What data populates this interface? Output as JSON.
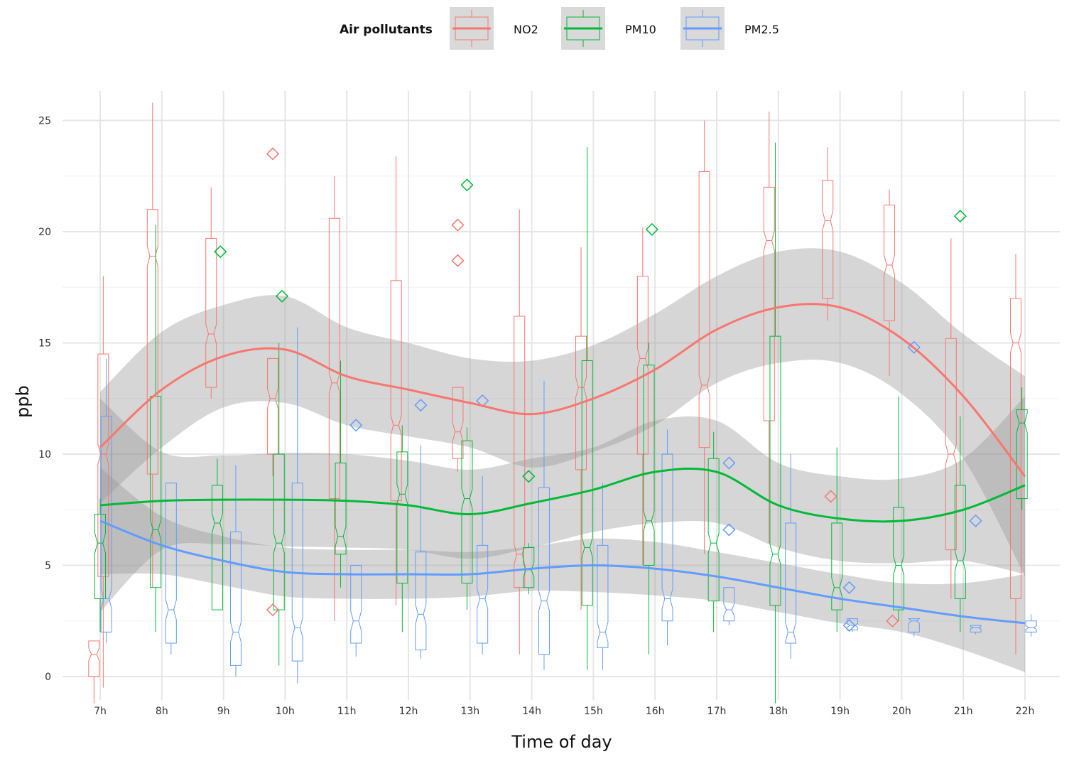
{
  "chart_data": {
    "type": "box_with_smooth",
    "xlabel": "Time of day",
    "ylabel": "ppb",
    "ylim": [
      -1.2,
      26.2
    ],
    "y_ticks": [
      0,
      5,
      10,
      15,
      20,
      25
    ],
    "grid": true,
    "legend": {
      "title": "Air pollutants",
      "position": "top",
      "entries": [
        "NO2",
        "PM10",
        "PM2.5"
      ]
    },
    "categories": [
      "7h",
      "8h",
      "9h",
      "10h",
      "11h",
      "12h",
      "13h",
      "14h",
      "15h",
      "16h",
      "17h",
      "18h",
      "19h",
      "20h",
      "21h",
      "22h"
    ],
    "series": [
      {
        "name": "NO2",
        "color": "#F8766D",
        "smooth": [
          10.3,
          12.9,
          14.4,
          14.7,
          13.5,
          12.9,
          12.3,
          11.8,
          12.5,
          13.8,
          15.6,
          16.6,
          16.6,
          15.2,
          12.6,
          9.0
        ],
        "smooth_se": [
          2.5,
          2.6,
          2.3,
          2.4,
          2.2,
          2.1,
          2.0,
          2.4,
          2.4,
          2.5,
          2.4,
          2.5,
          2.5,
          2.5,
          2.8,
          4.5
        ],
        "boxes": [
          {
            "whisker_low": -1.2,
            "q1": 0.0,
            "median": 1.0,
            "q3": 1.6,
            "whisker_high": 1.6
          },
          {
            "whisker_low": -0.5,
            "q1": 4.5,
            "median": 10.0,
            "q3": 14.5,
            "whisker_high": 18.0
          },
          {
            "whisker_low": 4.0,
            "q1": 9.1,
            "median": 18.9,
            "q3": 21.0,
            "whisker_high": 25.8
          },
          {
            "whisker_low": 12.5,
            "q1": 13.0,
            "median": 15.4,
            "q3": 19.7,
            "whisker_high": 22.0
          },
          {
            "whisker_low": 9.0,
            "q1": 10.0,
            "median": 12.5,
            "q3": 14.3,
            "whisker_high": 14.3
          },
          {
            "whisker_low": 2.5,
            "q1": 8.0,
            "median": 13.2,
            "q3": 20.6,
            "whisker_high": 22.5
          },
          {
            "whisker_low": 3.2,
            "q1": 7.9,
            "median": 11.3,
            "q3": 17.8,
            "whisker_high": 23.4
          },
          {
            "whisker_low": 9.2,
            "q1": 9.8,
            "median": 11.0,
            "q3": 13.0,
            "whisker_high": 13.0
          },
          {
            "whisker_low": 1.0,
            "q1": 4.0,
            "median": 5.5,
            "q3": 16.2,
            "whisker_high": 21.0
          },
          {
            "whisker_low": 3.0,
            "q1": 9.3,
            "median": 13.0,
            "q3": 15.3,
            "whisker_high": 19.3
          },
          {
            "whisker_low": 5.0,
            "q1": 10.0,
            "median": 14.3,
            "q3": 18.0,
            "whisker_high": 20.2
          },
          {
            "whisker_low": 5.5,
            "q1": 10.3,
            "median": 13.1,
            "q3": 22.7,
            "whisker_high": 25.0
          },
          {
            "whisker_low": 6.0,
            "q1": 11.5,
            "median": 19.6,
            "q3": 22.0,
            "whisker_high": 25.4
          },
          {
            "whisker_low": 16.0,
            "q1": 17.0,
            "median": 20.5,
            "q3": 22.3,
            "whisker_high": 23.8
          },
          {
            "whisker_low": 13.5,
            "q1": 16.0,
            "median": 18.5,
            "q3": 21.2,
            "whisker_high": 21.9
          },
          {
            "whisker_low": 3.5,
            "q1": 5.7,
            "median": 10.0,
            "q3": 15.2,
            "whisker_high": 19.7
          },
          {
            "whisker_low": 1.0,
            "q1": 3.5,
            "median": 15.0,
            "q3": 17.0,
            "whisker_high": 19.0
          }
        ],
        "box_x": [
          6.9,
          7.05,
          7.85,
          8.8,
          9.8,
          10.8,
          11.8,
          12.8,
          13.8,
          14.8,
          15.8,
          16.8,
          17.85,
          18.8,
          19.8,
          20.8,
          21.85
        ],
        "outliers": [
          [
            9.8,
            23.5
          ],
          [
            9.8,
            3.0
          ],
          [
            12.8,
            20.3
          ],
          [
            12.8,
            18.7
          ],
          [
            18.85,
            8.1
          ],
          [
            19.85,
            2.5
          ]
        ]
      },
      {
        "name": "PM10",
        "color": "#00BA38",
        "smooth": [
          7.7,
          7.9,
          7.95,
          7.95,
          7.9,
          7.7,
          7.3,
          7.8,
          8.4,
          9.2,
          9.2,
          7.7,
          7.1,
          7.0,
          7.5,
          8.6
        ],
        "smooth_se": [
          4.8,
          2.2,
          2.0,
          2.1,
          2.1,
          2.0,
          2.0,
          2.0,
          1.9,
          2.3,
          2.3,
          1.9,
          1.9,
          1.9,
          2.3,
          4.0
        ],
        "boxes": [
          {
            "whisker_low": 2.0,
            "q1": 3.5,
            "median": 6.0,
            "q3": 7.3,
            "whisker_high": 8.0
          },
          {
            "whisker_low": 2.0,
            "q1": 4.0,
            "median": 6.6,
            "q3": 12.6,
            "whisker_high": 20.3
          },
          {
            "whisker_low": 3.0,
            "q1": 3.0,
            "median": 6.9,
            "q3": 8.6,
            "whisker_high": 9.8
          },
          {
            "whisker_low": 0.5,
            "q1": 3.0,
            "median": 6.0,
            "q3": 10.0,
            "whisker_high": 15.0
          },
          {
            "whisker_low": 4.0,
            "q1": 5.5,
            "median": 6.3,
            "q3": 9.6,
            "whisker_high": 14.2
          },
          {
            "whisker_low": 2.0,
            "q1": 4.2,
            "median": 8.2,
            "q3": 10.1,
            "whisker_high": 11.3
          },
          {
            "whisker_low": 3.0,
            "q1": 4.2,
            "median": 8.0,
            "q3": 10.6,
            "whisker_high": 11.2
          },
          {
            "whisker_low": 3.7,
            "q1": 4.0,
            "median": 4.8,
            "q3": 5.8,
            "whisker_high": 6.0
          },
          {
            "whisker_low": 0.3,
            "q1": 3.2,
            "median": 5.8,
            "q3": 14.2,
            "whisker_high": 23.8
          },
          {
            "whisker_low": 1.0,
            "q1": 5.0,
            "median": 7.0,
            "q3": 14.0,
            "whisker_high": 15.0
          },
          {
            "whisker_low": 2.0,
            "q1": 3.4,
            "median": 6.0,
            "q3": 9.8,
            "whisker_high": 11.0
          },
          {
            "whisker_low": -1.2,
            "q1": 3.2,
            "median": 5.5,
            "q3": 15.3,
            "whisker_high": 24.0
          },
          {
            "whisker_low": 2.0,
            "q1": 3.0,
            "median": 4.0,
            "q3": 6.9,
            "whisker_high": 10.3
          },
          {
            "whisker_low": 2.5,
            "q1": 3.0,
            "median": 5.0,
            "q3": 7.6,
            "whisker_high": 12.6
          },
          {
            "whisker_low": 2.0,
            "q1": 3.5,
            "median": 5.2,
            "q3": 8.6,
            "whisker_high": 11.7
          },
          {
            "whisker_low": 7.5,
            "q1": 8.0,
            "median": 11.4,
            "q3": 12.0,
            "whisker_high": 13.0
          }
        ],
        "box_x": [
          7.0,
          7.9,
          8.9,
          9.9,
          10.9,
          11.9,
          12.95,
          13.95,
          14.9,
          15.9,
          16.95,
          17.95,
          18.95,
          19.95,
          20.95,
          21.95
        ],
        "outliers": [
          [
            8.95,
            19.1
          ],
          [
            9.95,
            17.1
          ],
          [
            12.95,
            22.1
          ],
          [
            13.95,
            9.0
          ],
          [
            15.95,
            20.1
          ],
          [
            20.95,
            20.7
          ]
        ]
      },
      {
        "name": "PM2.5",
        "color": "#619CFF",
        "smooth": [
          7.0,
          5.9,
          5.2,
          4.7,
          4.6,
          4.6,
          4.6,
          4.85,
          5.0,
          4.85,
          4.5,
          4.0,
          3.5,
          3.1,
          2.7,
          2.4
        ],
        "smooth_se": [
          2.4,
          1.3,
          1.1,
          1.1,
          1.1,
          1.1,
          1.0,
          1.0,
          1.2,
          1.2,
          1.1,
          1.1,
          1.1,
          1.1,
          1.5,
          2.2
        ],
        "boxes": [
          {
            "whisker_low": 1.5,
            "q1": 2.0,
            "median": 3.5,
            "q3": 11.7,
            "whisker_high": 14.3
          },
          {
            "whisker_low": 1.0,
            "q1": 1.5,
            "median": 3.0,
            "q3": 8.7,
            "whisker_high": 8.7
          },
          {
            "whisker_low": 0.0,
            "q1": 0.5,
            "median": 2.0,
            "q3": 6.5,
            "whisker_high": 9.5
          },
          {
            "whisker_low": -0.3,
            "q1": 0.7,
            "median": 2.2,
            "q3": 8.7,
            "whisker_high": 15.7
          },
          {
            "whisker_low": 0.9,
            "q1": 1.5,
            "median": 2.5,
            "q3": 5.0,
            "whisker_high": 5.0
          },
          {
            "whisker_low": 0.8,
            "q1": 1.2,
            "median": 2.8,
            "q3": 5.6,
            "whisker_high": 10.4
          },
          {
            "whisker_low": 1.0,
            "q1": 1.5,
            "median": 3.5,
            "q3": 5.9,
            "whisker_high": 9.0
          },
          {
            "whisker_low": 0.3,
            "q1": 1.0,
            "median": 3.4,
            "q3": 8.5,
            "whisker_high": 13.3
          },
          {
            "whisker_low": 0.3,
            "q1": 1.3,
            "median": 2.0,
            "q3": 5.9,
            "whisker_high": 8.7
          },
          {
            "whisker_low": 1.4,
            "q1": 2.5,
            "median": 3.5,
            "q3": 10.0,
            "whisker_high": 11.1
          },
          {
            "whisker_low": 2.3,
            "q1": 2.5,
            "median": 3.0,
            "q3": 4.0,
            "whisker_high": 4.0
          },
          {
            "whisker_low": 0.8,
            "q1": 1.5,
            "median": 2.0,
            "q3": 6.9,
            "whisker_high": 10.0
          },
          {
            "whisker_low": 2.0,
            "q1": 2.1,
            "median": 2.3,
            "q3": 2.6,
            "whisker_high": 2.6
          },
          {
            "whisker_low": 1.8,
            "q1": 2.0,
            "median": 2.5,
            "q3": 2.6,
            "whisker_high": 2.6
          },
          {
            "whisker_low": 1.9,
            "q1": 2.0,
            "median": 2.2,
            "q3": 2.3,
            "whisker_high": 2.3
          },
          {
            "whisker_low": 1.8,
            "q1": 2.0,
            "median": 2.2,
            "q3": 2.5,
            "whisker_high": 2.8
          }
        ],
        "box_x": [
          7.1,
          8.15,
          9.2,
          10.2,
          11.15,
          12.2,
          13.2,
          14.2,
          15.15,
          16.2,
          17.2,
          18.2,
          19.2,
          20.2,
          21.2,
          22.1
        ],
        "outliers": [
          [
            11.15,
            11.3
          ],
          [
            12.2,
            12.2
          ],
          [
            13.2,
            12.4
          ],
          [
            17.2,
            9.6
          ],
          [
            17.2,
            6.6
          ],
          [
            19.15,
            4.0
          ],
          [
            19.15,
            2.3
          ],
          [
            20.2,
            14.8
          ],
          [
            21.2,
            7.0
          ]
        ]
      }
    ]
  }
}
